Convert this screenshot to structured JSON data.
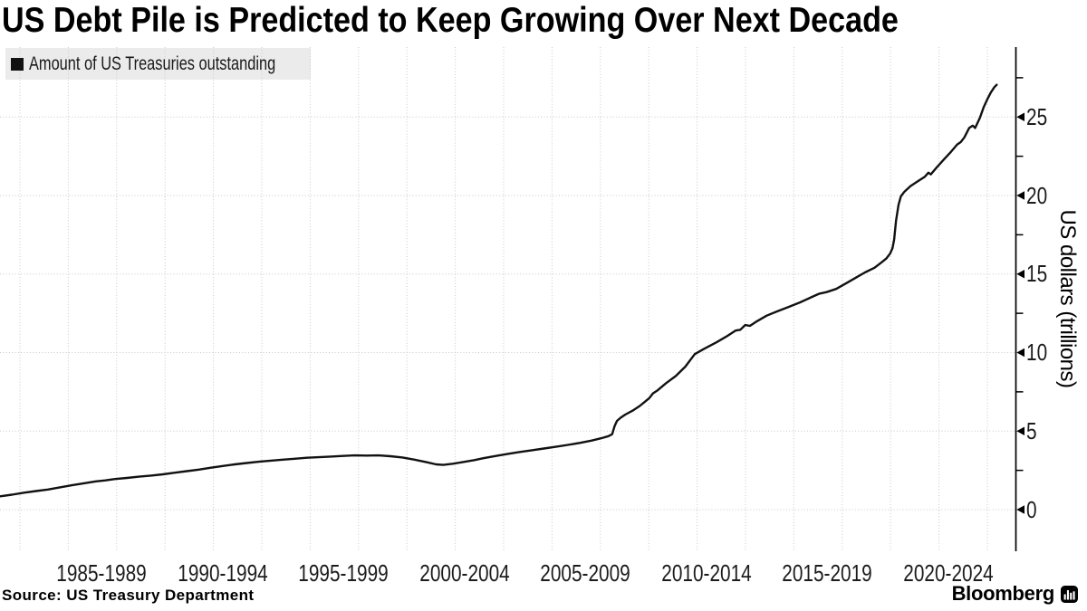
{
  "header": {
    "title": "US Debt Pile is Predicted to Keep Growing Over Next Decade"
  },
  "legend": {
    "label": "Amount of US Treasuries outstanding",
    "marker_color": "#111111"
  },
  "footer": {
    "source": "Source: US Treasury Department",
    "brand": "Bloomberg"
  },
  "colors": {
    "line": "#111111",
    "grid": "#c8c8c8",
    "axis": "#000000",
    "legend_bg": "#ebebeb",
    "background": "#ffffff"
  },
  "chart_data": {
    "type": "line",
    "title": "US Debt Pile is Predicted to Keep Growing Over Next Decade",
    "series_name": "Amount of US Treasuries outstanding",
    "xlabel": "",
    "ylabel": "US dollars (trillions)",
    "units": "USD trillions",
    "grid": "dotted",
    "legend_position": "top-left",
    "y_ticks": [
      0,
      5,
      10,
      15,
      20,
      25
    ],
    "y_minor_ticks": [
      2.5,
      7.5,
      12.5,
      17.5,
      22.5,
      27.5
    ],
    "ylim": [
      0,
      29.5
    ],
    "x_tick_labels": [
      "1985-1989",
      "1990-1994",
      "1995-1999",
      "2000-2004",
      "2005-2009",
      "2010-2014",
      "2015-2019",
      "2020-2024"
    ],
    "x_range_years": [
      1983.0,
      2024.6
    ],
    "points": [
      [
        1983.0,
        0.85
      ],
      [
        1983.5,
        0.95
      ],
      [
        1984.0,
        1.08
      ],
      [
        1984.5,
        1.18
      ],
      [
        1985.0,
        1.28
      ],
      [
        1985.5,
        1.42
      ],
      [
        1986.0,
        1.55
      ],
      [
        1986.5,
        1.68
      ],
      [
        1987.0,
        1.8
      ],
      [
        1987.4,
        1.86
      ],
      [
        1987.8,
        1.95
      ],
      [
        1988.3,
        2.02
      ],
      [
        1988.8,
        2.1
      ],
      [
        1989.3,
        2.17
      ],
      [
        1989.8,
        2.25
      ],
      [
        1990.3,
        2.35
      ],
      [
        1990.8,
        2.45
      ],
      [
        1991.3,
        2.55
      ],
      [
        1991.8,
        2.67
      ],
      [
        1992.3,
        2.78
      ],
      [
        1992.8,
        2.88
      ],
      [
        1993.3,
        2.97
      ],
      [
        1993.8,
        3.05
      ],
      [
        1994.3,
        3.12
      ],
      [
        1994.8,
        3.18
      ],
      [
        1995.3,
        3.24
      ],
      [
        1995.8,
        3.3
      ],
      [
        1996.3,
        3.34
      ],
      [
        1996.8,
        3.38
      ],
      [
        1997.3,
        3.42
      ],
      [
        1997.8,
        3.45
      ],
      [
        1998.3,
        3.44
      ],
      [
        1998.8,
        3.45
      ],
      [
        1999.3,
        3.4
      ],
      [
        1999.8,
        3.32
      ],
      [
        2000.3,
        3.18
      ],
      [
        2000.8,
        3.02
      ],
      [
        2001.2,
        2.88
      ],
      [
        2001.5,
        2.85
      ],
      [
        2001.9,
        2.92
      ],
      [
        2002.3,
        3.02
      ],
      [
        2002.8,
        3.15
      ],
      [
        2003.2,
        3.28
      ],
      [
        2003.7,
        3.42
      ],
      [
        2004.2,
        3.55
      ],
      [
        2004.7,
        3.67
      ],
      [
        2005.2,
        3.78
      ],
      [
        2005.7,
        3.89
      ],
      [
        2006.2,
        4.0
      ],
      [
        2006.7,
        4.12
      ],
      [
        2007.2,
        4.25
      ],
      [
        2007.7,
        4.4
      ],
      [
        2008.1,
        4.55
      ],
      [
        2008.4,
        4.68
      ],
      [
        2008.55,
        4.8
      ],
      [
        2008.65,
        5.3
      ],
      [
        2008.75,
        5.65
      ],
      [
        2008.9,
        5.85
      ],
      [
        2009.1,
        6.05
      ],
      [
        2009.4,
        6.3
      ],
      [
        2009.7,
        6.6
      ],
      [
        2009.9,
        6.85
      ],
      [
        2010.1,
        7.1
      ],
      [
        2010.25,
        7.4
      ],
      [
        2010.45,
        7.6
      ],
      [
        2010.8,
        8.05
      ],
      [
        2011.2,
        8.5
      ],
      [
        2011.6,
        9.1
      ],
      [
        2012.0,
        9.9
      ],
      [
        2012.4,
        10.25
      ],
      [
        2012.9,
        10.65
      ],
      [
        2013.3,
        11.0
      ],
      [
        2013.7,
        11.4
      ],
      [
        2013.9,
        11.45
      ],
      [
        2014.1,
        11.75
      ],
      [
        2014.3,
        11.7
      ],
      [
        2014.6,
        12.0
      ],
      [
        2015.0,
        12.35
      ],
      [
        2015.4,
        12.6
      ],
      [
        2015.9,
        12.9
      ],
      [
        2016.4,
        13.2
      ],
      [
        2016.9,
        13.55
      ],
      [
        2017.2,
        13.75
      ],
      [
        2017.5,
        13.85
      ],
      [
        2017.9,
        14.05
      ],
      [
        2018.3,
        14.4
      ],
      [
        2018.7,
        14.75
      ],
      [
        2019.1,
        15.1
      ],
      [
        2019.5,
        15.4
      ],
      [
        2019.8,
        15.75
      ],
      [
        2020.0,
        16.0
      ],
      [
        2020.15,
        16.3
      ],
      [
        2020.25,
        16.65
      ],
      [
        2020.32,
        17.2
      ],
      [
        2020.4,
        18.4
      ],
      [
        2020.5,
        19.4
      ],
      [
        2020.6,
        19.95
      ],
      [
        2020.75,
        20.25
      ],
      [
        2021.0,
        20.6
      ],
      [
        2021.3,
        20.9
      ],
      [
        2021.6,
        21.2
      ],
      [
        2021.75,
        21.45
      ],
      [
        2021.85,
        21.35
      ],
      [
        2022.1,
        21.8
      ],
      [
        2022.4,
        22.3
      ],
      [
        2022.7,
        22.8
      ],
      [
        2022.95,
        23.25
      ],
      [
        2023.1,
        23.4
      ],
      [
        2023.25,
        23.7
      ],
      [
        2023.45,
        24.3
      ],
      [
        2023.6,
        24.45
      ],
      [
        2023.7,
        24.3
      ],
      [
        2023.9,
        24.95
      ],
      [
        2024.05,
        25.6
      ],
      [
        2024.2,
        26.1
      ],
      [
        2024.35,
        26.55
      ],
      [
        2024.5,
        26.9
      ],
      [
        2024.6,
        27.05
      ]
    ]
  }
}
